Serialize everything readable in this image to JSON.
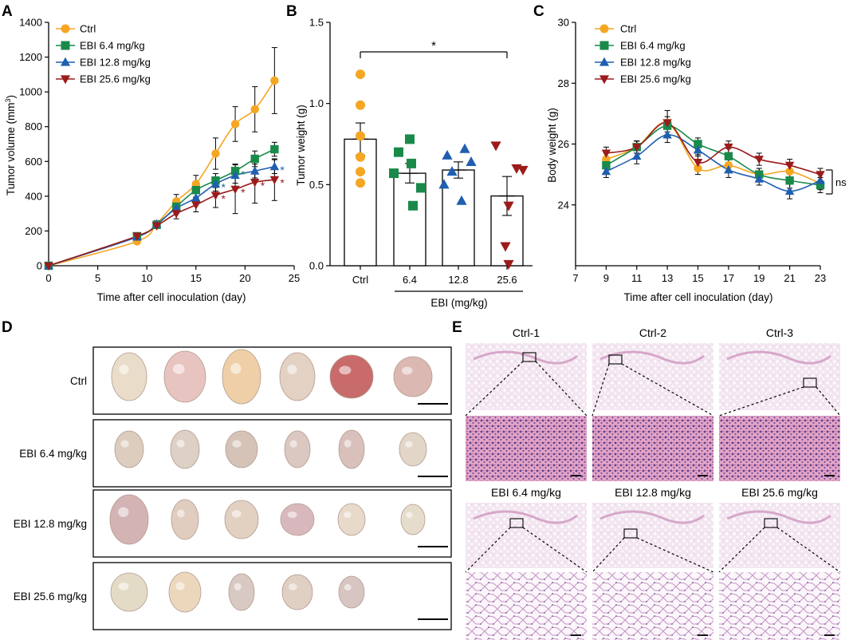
{
  "figure": {
    "panel_labels": [
      "A",
      "B",
      "C",
      "D",
      "E"
    ],
    "series_names": [
      "Ctrl",
      "EBI 6.4 mg/kg",
      "EBI 12.8 mg/kg",
      "EBI 25.6 mg/kg"
    ],
    "colors": [
      "#f5a623",
      "#1a8a4a",
      "#1f5fb0",
      "#9b1b1b"
    ]
  },
  "chart_data": [
    {
      "type": "line",
      "panel": "A",
      "xlabel": "Time after cell inoculation (day)",
      "ylabel": "Tumor volume (mm3)",
      "xlim": [
        0,
        25
      ],
      "ylim": [
        0,
        1400
      ],
      "xticks": [
        0,
        5,
        10,
        15,
        20,
        25
      ],
      "yticks": [
        0,
        200,
        400,
        600,
        800,
        1000,
        1200,
        1400
      ],
      "x": [
        0,
        9,
        11,
        13,
        15,
        17,
        19,
        21,
        23
      ],
      "series": [
        {
          "name": "Ctrl",
          "values": [
            0,
            140,
            240,
            370,
            470,
            645,
            815,
            900,
            1065
          ],
          "errors": [
            0,
            10,
            20,
            40,
            50,
            90,
            100,
            130,
            190
          ]
        },
        {
          "name": "EBI 6.4 mg/kg",
          "values": [
            0,
            170,
            235,
            340,
            435,
            490,
            545,
            615,
            670
          ],
          "errors": [
            0,
            10,
            15,
            30,
            40,
            40,
            40,
            45,
            40
          ]
        },
        {
          "name": "EBI 12.8 mg/kg",
          "values": [
            0,
            165,
            240,
            330,
            390,
            470,
            520,
            545,
            570
          ],
          "errors": [
            0,
            10,
            15,
            30,
            40,
            40,
            45,
            40,
            40
          ]
        },
        {
          "name": "EBI 25.6 mg/kg",
          "values": [
            0,
            170,
            230,
            300,
            350,
            405,
            440,
            480,
            495
          ],
          "errors": [
            0,
            10,
            15,
            30,
            40,
            70,
            140,
            120,
            120
          ]
        }
      ],
      "annotations": [
        {
          "series": "EBI 6.4 mg/kg",
          "x": [
            19
          ],
          "text": "*"
        },
        {
          "series": "EBI 12.8 mg/kg",
          "x": [
            17,
            23
          ],
          "text": "*"
        },
        {
          "series": "EBI 25.6 mg/kg",
          "x": [
            17,
            19,
            21,
            23
          ],
          "text": "*"
        }
      ]
    },
    {
      "type": "bar",
      "panel": "B",
      "categories": [
        "Ctrl",
        "6.4",
        "12.8",
        "25.6"
      ],
      "values": [
        0.78,
        0.57,
        0.59,
        0.43
      ],
      "errors": [
        0.1,
        0.06,
        0.05,
        0.12
      ],
      "points": [
        [
          1.18,
          0.99,
          0.8,
          0.67,
          0.58,
          0.51
        ],
        [
          0.78,
          0.7,
          0.63,
          0.57,
          0.48,
          0.37
        ],
        [
          0.72,
          0.68,
          0.64,
          0.58,
          0.5,
          0.4
        ],
        [
          0.74,
          0.6,
          0.59,
          0.37,
          0.12,
          0.01
        ]
      ],
      "ylabel": "Tumor weight (g)",
      "xlabel": "EBI (mg/kg)",
      "ylim": [
        0,
        1.5
      ],
      "yticks": [
        "0.0",
        "0.5",
        "1.0",
        "1.5"
      ],
      "significance": {
        "between": [
          "Ctrl",
          "25.6"
        ],
        "text": "*"
      }
    },
    {
      "type": "line",
      "panel": "C",
      "xlabel": "Time after cell inoculation (day)",
      "ylabel": "Body weight (g)",
      "xlim": [
        7,
        23
      ],
      "ylim": [
        22,
        30
      ],
      "xticks": [
        7,
        9,
        11,
        13,
        15,
        17,
        19,
        21,
        23
      ],
      "yticks": [
        24,
        26,
        28,
        30
      ],
      "x": [
        9,
        11,
        13,
        15,
        17,
        19,
        21,
        23
      ],
      "series": [
        {
          "name": "Ctrl",
          "values": [
            25.5,
            25.9,
            26.7,
            25.2,
            25.3,
            25.0,
            25.1,
            24.7
          ],
          "errors": [
            0.2,
            0.2,
            0.2,
            0.2,
            0.2,
            0.2,
            0.2,
            0.2
          ]
        },
        {
          "name": "EBI 6.4 mg/kg",
          "values": [
            25.3,
            25.9,
            26.6,
            26.0,
            25.6,
            25.0,
            24.8,
            24.65
          ],
          "errors": [
            0.25,
            0.2,
            0.2,
            0.2,
            0.25,
            0.2,
            0.25,
            0.25
          ]
        },
        {
          "name": "EBI 12.8 mg/kg",
          "values": [
            25.1,
            25.6,
            26.3,
            25.8,
            25.15,
            24.85,
            24.45,
            24.8
          ],
          "errors": [
            0.2,
            0.25,
            0.25,
            0.2,
            0.25,
            0.2,
            0.25,
            0.2
          ]
        },
        {
          "name": "EBI 25.6 mg/kg",
          "values": [
            25.7,
            25.9,
            26.7,
            25.4,
            25.9,
            25.5,
            25.3,
            25.0
          ],
          "errors": [
            0.2,
            0.2,
            0.4,
            0.25,
            0.2,
            0.2,
            0.2,
            0.2
          ]
        }
      ],
      "annotation": "ns"
    }
  ],
  "panel_d": {
    "rows": [
      {
        "label": "Ctrl",
        "count": 6
      },
      {
        "label": "EBI 6.4 mg/kg",
        "count": 6
      },
      {
        "label": "EBI 12.8 mg/kg",
        "count": 6
      },
      {
        "label": "EBI 25.6 mg/kg",
        "count": 5
      }
    ]
  },
  "panel_e": {
    "titles": [
      "Ctrl-1",
      "Ctrl-2",
      "Ctrl-3",
      "EBI 6.4 mg/kg",
      "EBI 12.8 mg/kg",
      "EBI 25.6 mg/kg"
    ]
  }
}
